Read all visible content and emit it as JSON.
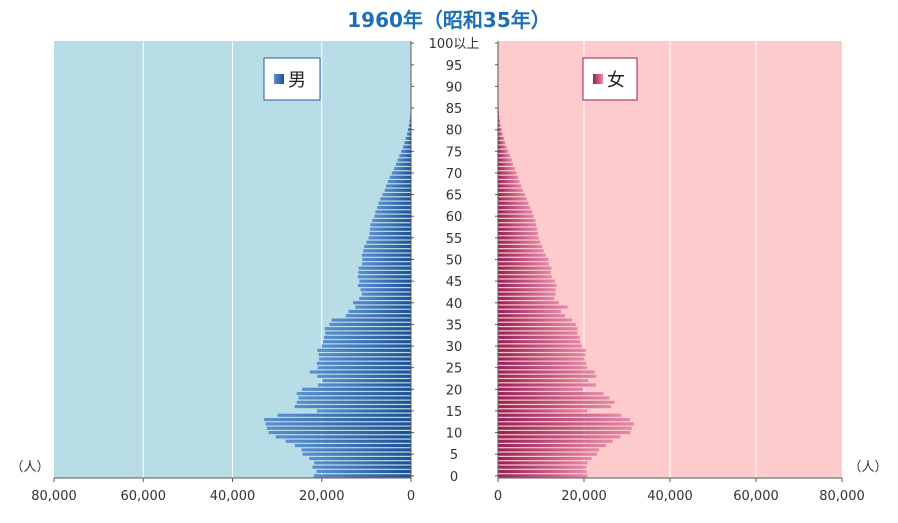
{
  "chart_data": {
    "type": "bar",
    "title": "1960年（昭和35年）",
    "unit_label": "（人）",
    "xlim": [
      0,
      80000
    ],
    "x_ticks": [
      "80,000",
      "60,000",
      "40,000",
      "20,000",
      "0"
    ],
    "x_ticks_right": [
      "0",
      "20,000",
      "40,000",
      "60,000",
      "80,000"
    ],
    "age_ticks": [
      "0",
      "5",
      "10",
      "15",
      "20",
      "25",
      "30",
      "35",
      "40",
      "45",
      "50",
      "55",
      "60",
      "65",
      "70",
      "75",
      "80",
      "85",
      "90",
      "95",
      "100以上"
    ],
    "grid": true,
    "ages": [
      "0",
      "1",
      "2",
      "3",
      "4",
      "5",
      "6",
      "7",
      "8",
      "9",
      "10",
      "11",
      "12",
      "13",
      "14",
      "15",
      "16",
      "17",
      "18",
      "19",
      "20",
      "21",
      "22",
      "23",
      "24",
      "25",
      "26",
      "27",
      "28",
      "29",
      "30",
      "31",
      "32",
      "33",
      "34",
      "35",
      "36",
      "37",
      "38",
      "39",
      "40",
      "41",
      "42",
      "43",
      "44",
      "45",
      "46",
      "47",
      "48",
      "49",
      "50",
      "51",
      "52",
      "53",
      "54",
      "55",
      "56",
      "57",
      "58",
      "59",
      "60",
      "61",
      "62",
      "63",
      "64",
      "65",
      "66",
      "67",
      "68",
      "69",
      "70",
      "71",
      "72",
      "73",
      "74",
      "75",
      "76",
      "77",
      "78",
      "79",
      "80",
      "81",
      "82",
      "83",
      "84",
      "85",
      "86",
      "87",
      "88",
      "89",
      "90",
      "91",
      "92",
      "93",
      "94",
      "95",
      "96",
      "97",
      "98",
      "99",
      "100以上"
    ],
    "series": [
      {
        "name": "男",
        "color": "#3a6fb0",
        "values": [
          21800,
          21200,
          22100,
          21700,
          22800,
          24300,
          24500,
          26000,
          28100,
          30300,
          31900,
          32300,
          32600,
          32900,
          29900,
          21100,
          26100,
          25600,
          25200,
          25600,
          24400,
          20800,
          19900,
          21000,
          22700,
          20900,
          21100,
          20600,
          20700,
          21000,
          20000,
          19700,
          19500,
          19200,
          19300,
          18300,
          17800,
          14600,
          14000,
          12500,
          13000,
          11600,
          11000,
          11300,
          11900,
          11600,
          11900,
          11800,
          11700,
          11000,
          10900,
          11000,
          10700,
          10500,
          10000,
          9500,
          9300,
          9200,
          9100,
          8700,
          8200,
          8000,
          7600,
          7300,
          6900,
          6400,
          5900,
          5600,
          5200,
          4800,
          4300,
          3800,
          3400,
          3000,
          2600,
          2200,
          1800,
          1500,
          1200,
          900,
          700,
          500,
          350,
          230,
          140,
          80,
          45,
          25,
          14,
          8,
          4,
          2,
          1,
          0,
          0,
          0,
          0,
          0,
          0,
          0,
          0
        ]
      },
      {
        "name": "女",
        "color": "#c0336b",
        "values": [
          20800,
          20600,
          20500,
          20800,
          21800,
          23000,
          23500,
          25100,
          26700,
          28500,
          30800,
          31100,
          31600,
          30700,
          28700,
          20800,
          26300,
          27100,
          25900,
          24500,
          19800,
          22800,
          21000,
          22900,
          22500,
          20700,
          20500,
          20100,
          20300,
          20400,
          19500,
          19200,
          19000,
          18500,
          18500,
          18100,
          17200,
          15600,
          14700,
          16200,
          14200,
          13100,
          13400,
          13400,
          13600,
          13200,
          12500,
          12300,
          12400,
          11800,
          11700,
          11100,
          10600,
          10300,
          9800,
          9500,
          9300,
          9100,
          8900,
          8700,
          8300,
          8000,
          7500,
          7100,
          6700,
          6300,
          5800,
          5400,
          5000,
          4700,
          4300,
          3900,
          3500,
          3200,
          2800,
          2400,
          2000,
          1700,
          1400,
          1100,
          850,
          650,
          480,
          350,
          240,
          160,
          100,
          60,
          35,
          20,
          10,
          5,
          3,
          1,
          0,
          0,
          0,
          0,
          0,
          0,
          0
        ]
      }
    ]
  }
}
